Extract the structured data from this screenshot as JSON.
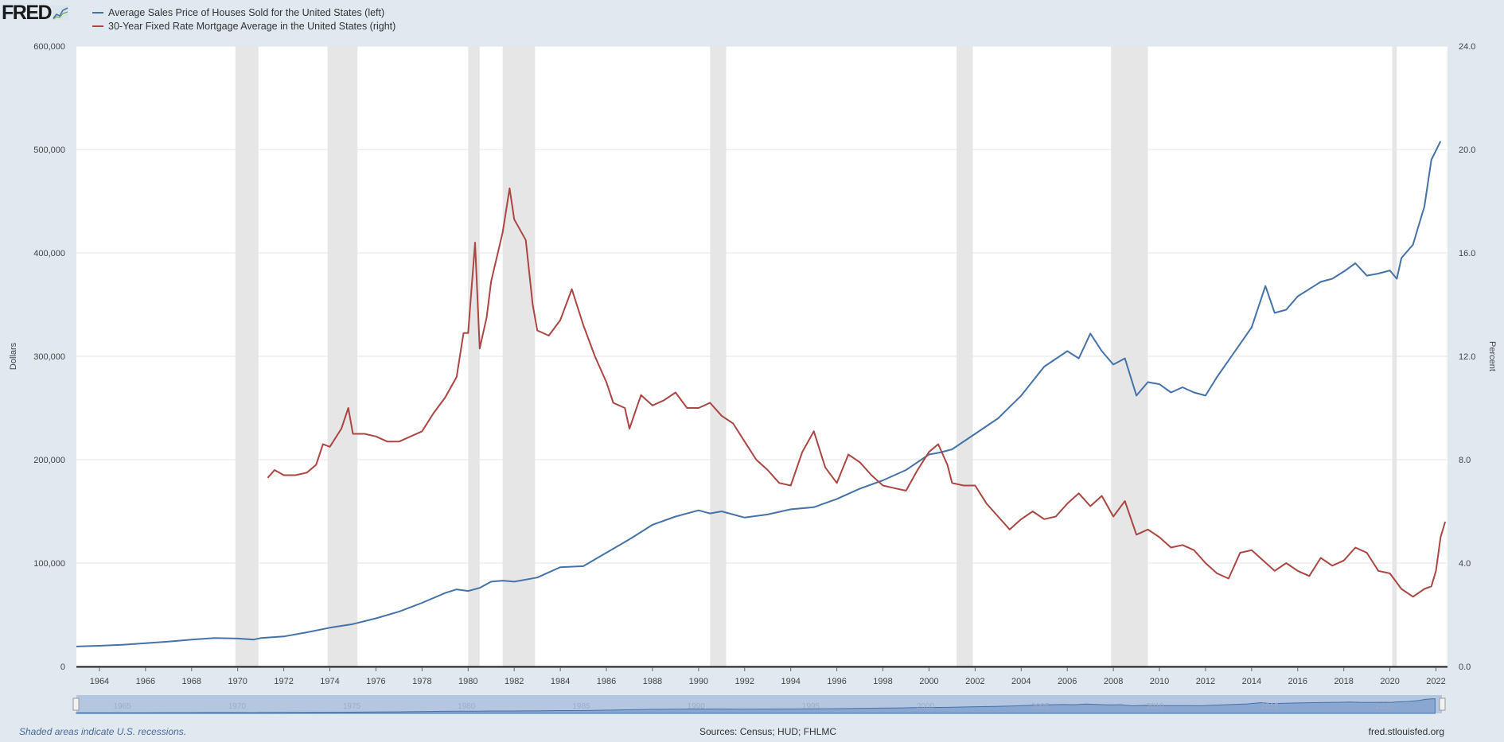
{
  "header": {
    "logo_text": "FRED",
    "legend": [
      {
        "label": "Average Sales Price of Houses Sold for the United States (left)",
        "color": "#4572a7"
      },
      {
        "label": "30-Year Fixed Rate Mortgage Average in the United States (right)",
        "color": "#aa4643"
      }
    ]
  },
  "footer": {
    "note": "Shaded areas indicate U.S. recessions.",
    "sources": "Sources: Census; HUD; FHLMC",
    "site": "fred.stlouisfed.org"
  },
  "chart_data": {
    "type": "line",
    "ylabel": "Dollars",
    "y2label": "Percent",
    "ylim": [
      0,
      600000
    ],
    "y2lim": [
      0,
      24
    ],
    "xlim": [
      1963.0,
      2022.5
    ],
    "y_ticks": [
      "0",
      "100,000",
      "200,000",
      "300,000",
      "400,000",
      "500,000",
      "600,000"
    ],
    "y2_ticks": [
      "0.0",
      "4.0",
      "8.0",
      "12.0",
      "16.0",
      "20.0",
      "24.0"
    ],
    "x_ticks": [
      "1964",
      "1966",
      "1968",
      "1970",
      "1972",
      "1974",
      "1976",
      "1978",
      "1980",
      "1982",
      "1984",
      "1986",
      "1988",
      "1990",
      "1992",
      "1994",
      "1996",
      "1998",
      "2000",
      "2002",
      "2004",
      "2006",
      "2008",
      "2010",
      "2012",
      "2014",
      "2016",
      "2018",
      "2020",
      "2022"
    ],
    "navigator_ticks": [
      "1965",
      "1970",
      "1975",
      "1980",
      "1985",
      "1990",
      "1995",
      "2000",
      "2005",
      "2010",
      "2015",
      "2020"
    ],
    "grid": true,
    "recessions": [
      [
        1969.9,
        1970.9
      ],
      [
        1973.9,
        1975.2
      ],
      [
        1980.0,
        1980.5
      ],
      [
        1981.5,
        1982.9
      ],
      [
        1990.5,
        1991.2
      ],
      [
        2001.2,
        2001.9
      ],
      [
        2007.9,
        2009.5
      ],
      [
        2020.1,
        2020.3
      ]
    ],
    "series": [
      {
        "name": "Average Sales Price of Houses Sold for the United States (left)",
        "axis": "left",
        "color": "#4572a7",
        "points": [
          [
            1963.0,
            19300
          ],
          [
            1964.0,
            20000
          ],
          [
            1965.0,
            21000
          ],
          [
            1966.0,
            22500
          ],
          [
            1967.0,
            24000
          ],
          [
            1968.0,
            26000
          ],
          [
            1969.0,
            27500
          ],
          [
            1970.0,
            27000
          ],
          [
            1970.7,
            26000
          ],
          [
            1971.0,
            27500
          ],
          [
            1972.0,
            29000
          ],
          [
            1973.0,
            33000
          ],
          [
            1974.0,
            37500
          ],
          [
            1975.0,
            41000
          ],
          [
            1976.0,
            46500
          ],
          [
            1977.0,
            53000
          ],
          [
            1978.0,
            61500
          ],
          [
            1979.0,
            71000
          ],
          [
            1979.5,
            74500
          ],
          [
            1980.0,
            73000
          ],
          [
            1980.5,
            76000
          ],
          [
            1981.0,
            82000
          ],
          [
            1981.5,
            83000
          ],
          [
            1982.0,
            82000
          ],
          [
            1982.5,
            84000
          ],
          [
            1983.0,
            86000
          ],
          [
            1984.0,
            96000
          ],
          [
            1985.0,
            97000
          ],
          [
            1986.0,
            110000
          ],
          [
            1987.0,
            123000
          ],
          [
            1988.0,
            137000
          ],
          [
            1989.0,
            145000
          ],
          [
            1990.0,
            151000
          ],
          [
            1990.5,
            148000
          ],
          [
            1991.0,
            150000
          ],
          [
            1992.0,
            144000
          ],
          [
            1993.0,
            147000
          ],
          [
            1994.0,
            152000
          ],
          [
            1995.0,
            154000
          ],
          [
            1996.0,
            162000
          ],
          [
            1997.0,
            172000
          ],
          [
            1998.0,
            180000
          ],
          [
            1999.0,
            190000
          ],
          [
            2000.0,
            205000
          ],
          [
            2000.5,
            207000
          ],
          [
            2001.0,
            210000
          ],
          [
            2002.0,
            225000
          ],
          [
            2003.0,
            240000
          ],
          [
            2004.0,
            262000
          ],
          [
            2005.0,
            290000
          ],
          [
            2006.0,
            305000
          ],
          [
            2006.5,
            298000
          ],
          [
            2007.0,
            322000
          ],
          [
            2007.5,
            305000
          ],
          [
            2008.0,
            292000
          ],
          [
            2008.5,
            298000
          ],
          [
            2009.0,
            262000
          ],
          [
            2009.5,
            275000
          ],
          [
            2010.0,
            273000
          ],
          [
            2010.5,
            265000
          ],
          [
            2011.0,
            270000
          ],
          [
            2011.5,
            265000
          ],
          [
            2012.0,
            262000
          ],
          [
            2012.5,
            280000
          ],
          [
            2013.0,
            296000
          ],
          [
            2014.0,
            328000
          ],
          [
            2014.6,
            368000
          ],
          [
            2015.0,
            342000
          ],
          [
            2015.5,
            345000
          ],
          [
            2016.0,
            358000
          ],
          [
            2017.0,
            372000
          ],
          [
            2017.5,
            375000
          ],
          [
            2018.0,
            382000
          ],
          [
            2018.5,
            390000
          ],
          [
            2019.0,
            378000
          ],
          [
            2019.5,
            380000
          ],
          [
            2020.0,
            383000
          ],
          [
            2020.3,
            375000
          ],
          [
            2020.5,
            395000
          ],
          [
            2021.0,
            408000
          ],
          [
            2021.5,
            445000
          ],
          [
            2021.8,
            490000
          ],
          [
            2022.2,
            508000
          ]
        ]
      },
      {
        "name": "30-Year Fixed Rate Mortgage Average in the United States (right)",
        "axis": "right",
        "color": "#aa4643",
        "points": [
          [
            1971.3,
            7.3
          ],
          [
            1971.6,
            7.6
          ],
          [
            1972.0,
            7.4
          ],
          [
            1972.5,
            7.4
          ],
          [
            1973.0,
            7.5
          ],
          [
            1973.4,
            7.8
          ],
          [
            1973.7,
            8.6
          ],
          [
            1974.0,
            8.5
          ],
          [
            1974.5,
            9.2
          ],
          [
            1974.8,
            10.0
          ],
          [
            1975.0,
            9.0
          ],
          [
            1975.5,
            9.0
          ],
          [
            1976.0,
            8.9
          ],
          [
            1976.5,
            8.7
          ],
          [
            1977.0,
            8.7
          ],
          [
            1977.5,
            8.9
          ],
          [
            1978.0,
            9.1
          ],
          [
            1978.5,
            9.8
          ],
          [
            1979.0,
            10.4
          ],
          [
            1979.5,
            11.2
          ],
          [
            1979.8,
            12.9
          ],
          [
            1980.0,
            12.9
          ],
          [
            1980.3,
            16.4
          ],
          [
            1980.5,
            12.3
          ],
          [
            1980.8,
            13.5
          ],
          [
            1981.0,
            14.9
          ],
          [
            1981.5,
            16.8
          ],
          [
            1981.8,
            18.5
          ],
          [
            1982.0,
            17.3
          ],
          [
            1982.5,
            16.5
          ],
          [
            1982.8,
            14.0
          ],
          [
            1983.0,
            13.0
          ],
          [
            1983.5,
            12.8
          ],
          [
            1984.0,
            13.4
          ],
          [
            1984.5,
            14.6
          ],
          [
            1985.0,
            13.2
          ],
          [
            1985.5,
            12.0
          ],
          [
            1986.0,
            11.0
          ],
          [
            1986.3,
            10.2
          ],
          [
            1986.8,
            10.0
          ],
          [
            1987.0,
            9.2
          ],
          [
            1987.5,
            10.5
          ],
          [
            1988.0,
            10.1
          ],
          [
            1988.5,
            10.3
          ],
          [
            1989.0,
            10.6
          ],
          [
            1989.5,
            10.0
          ],
          [
            1990.0,
            10.0
          ],
          [
            1990.5,
            10.2
          ],
          [
            1991.0,
            9.7
          ],
          [
            1991.5,
            9.4
          ],
          [
            1992.0,
            8.7
          ],
          [
            1992.5,
            8.0
          ],
          [
            1993.0,
            7.6
          ],
          [
            1993.5,
            7.1
          ],
          [
            1994.0,
            7.0
          ],
          [
            1994.5,
            8.3
          ],
          [
            1995.0,
            9.1
          ],
          [
            1995.5,
            7.7
          ],
          [
            1996.0,
            7.1
          ],
          [
            1996.5,
            8.2
          ],
          [
            1997.0,
            7.9
          ],
          [
            1997.5,
            7.4
          ],
          [
            1998.0,
            7.0
          ],
          [
            1998.5,
            6.9
          ],
          [
            1999.0,
            6.8
          ],
          [
            1999.5,
            7.6
          ],
          [
            2000.0,
            8.3
          ],
          [
            2000.4,
            8.6
          ],
          [
            2000.8,
            7.8
          ],
          [
            2001.0,
            7.1
          ],
          [
            2001.5,
            7.0
          ],
          [
            2002.0,
            7.0
          ],
          [
            2002.5,
            6.3
          ],
          [
            2003.0,
            5.8
          ],
          [
            2003.5,
            5.3
          ],
          [
            2004.0,
            5.7
          ],
          [
            2004.5,
            6.0
          ],
          [
            2005.0,
            5.7
          ],
          [
            2005.5,
            5.8
          ],
          [
            2006.0,
            6.3
          ],
          [
            2006.5,
            6.7
          ],
          [
            2007.0,
            6.2
          ],
          [
            2007.5,
            6.6
          ],
          [
            2008.0,
            5.8
          ],
          [
            2008.5,
            6.4
          ],
          [
            2009.0,
            5.1
          ],
          [
            2009.5,
            5.3
          ],
          [
            2010.0,
            5.0
          ],
          [
            2010.5,
            4.6
          ],
          [
            2011.0,
            4.7
          ],
          [
            2011.5,
            4.5
          ],
          [
            2012.0,
            4.0
          ],
          [
            2012.5,
            3.6
          ],
          [
            2013.0,
            3.4
          ],
          [
            2013.5,
            4.4
          ],
          [
            2014.0,
            4.5
          ],
          [
            2014.5,
            4.1
          ],
          [
            2015.0,
            3.7
          ],
          [
            2015.5,
            4.0
          ],
          [
            2016.0,
            3.7
          ],
          [
            2016.5,
            3.5
          ],
          [
            2017.0,
            4.2
          ],
          [
            2017.5,
            3.9
          ],
          [
            2018.0,
            4.1
          ],
          [
            2018.5,
            4.6
          ],
          [
            2019.0,
            4.4
          ],
          [
            2019.5,
            3.7
          ],
          [
            2020.0,
            3.6
          ],
          [
            2020.5,
            3.0
          ],
          [
            2021.0,
            2.7
          ],
          [
            2021.5,
            3.0
          ],
          [
            2021.8,
            3.1
          ],
          [
            2022.0,
            3.7
          ],
          [
            2022.2,
            5.0
          ],
          [
            2022.4,
            5.6
          ]
        ]
      }
    ]
  }
}
